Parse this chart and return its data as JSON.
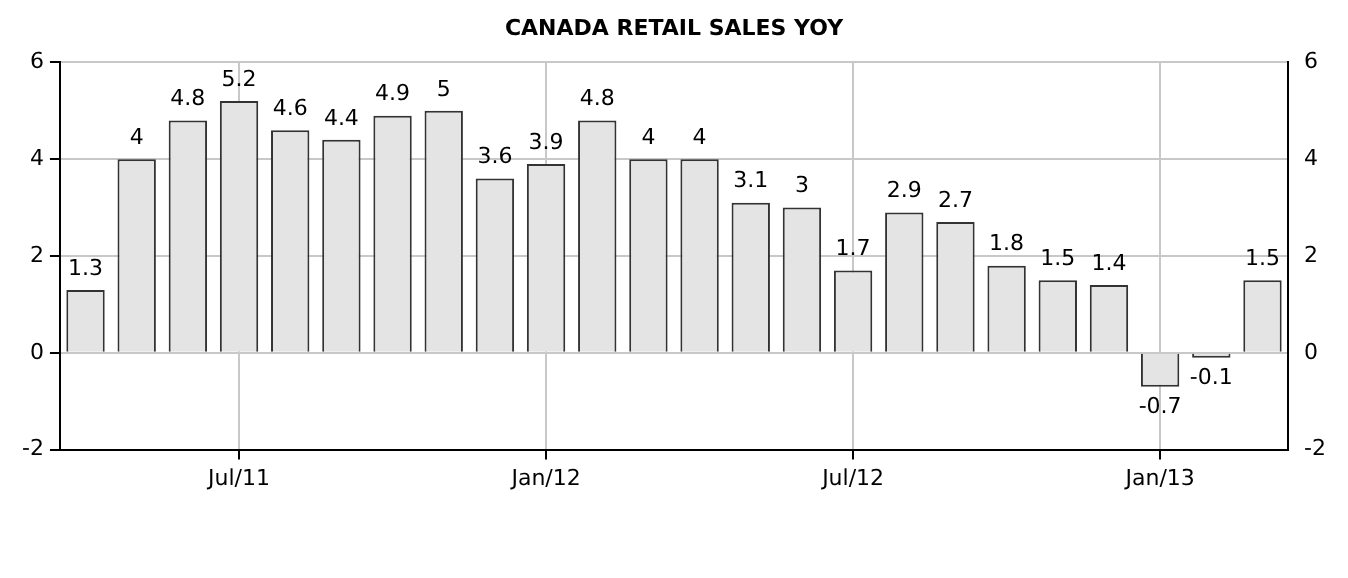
{
  "chart_data": {
    "type": "bar",
    "title": "CANADA RETAIL SALES YOY",
    "categories": [
      null,
      null,
      null,
      "Jul/11",
      null,
      null,
      null,
      null,
      null,
      "Jan/12",
      null,
      null,
      null,
      null,
      null,
      "Jul/12",
      null,
      null,
      null,
      null,
      null,
      "Jan/13",
      null,
      null
    ],
    "values": [
      1.3,
      4,
      4.8,
      5.2,
      4.6,
      4.4,
      4.9,
      5,
      3.6,
      3.9,
      4.8,
      4,
      4,
      3.1,
      3,
      1.7,
      2.9,
      2.7,
      1.8,
      1.5,
      1.4,
      -0.7,
      -0.1,
      1.5
    ],
    "color": "#e4e4e4",
    "ylim": [
      -2,
      6
    ],
    "yticks": [
      -2,
      0,
      2,
      4,
      6
    ],
    "y2lim": [
      -2,
      6
    ],
    "y2ticks": [
      -2,
      0,
      2,
      4,
      6
    ],
    "grid": true,
    "data_labels": true
  }
}
